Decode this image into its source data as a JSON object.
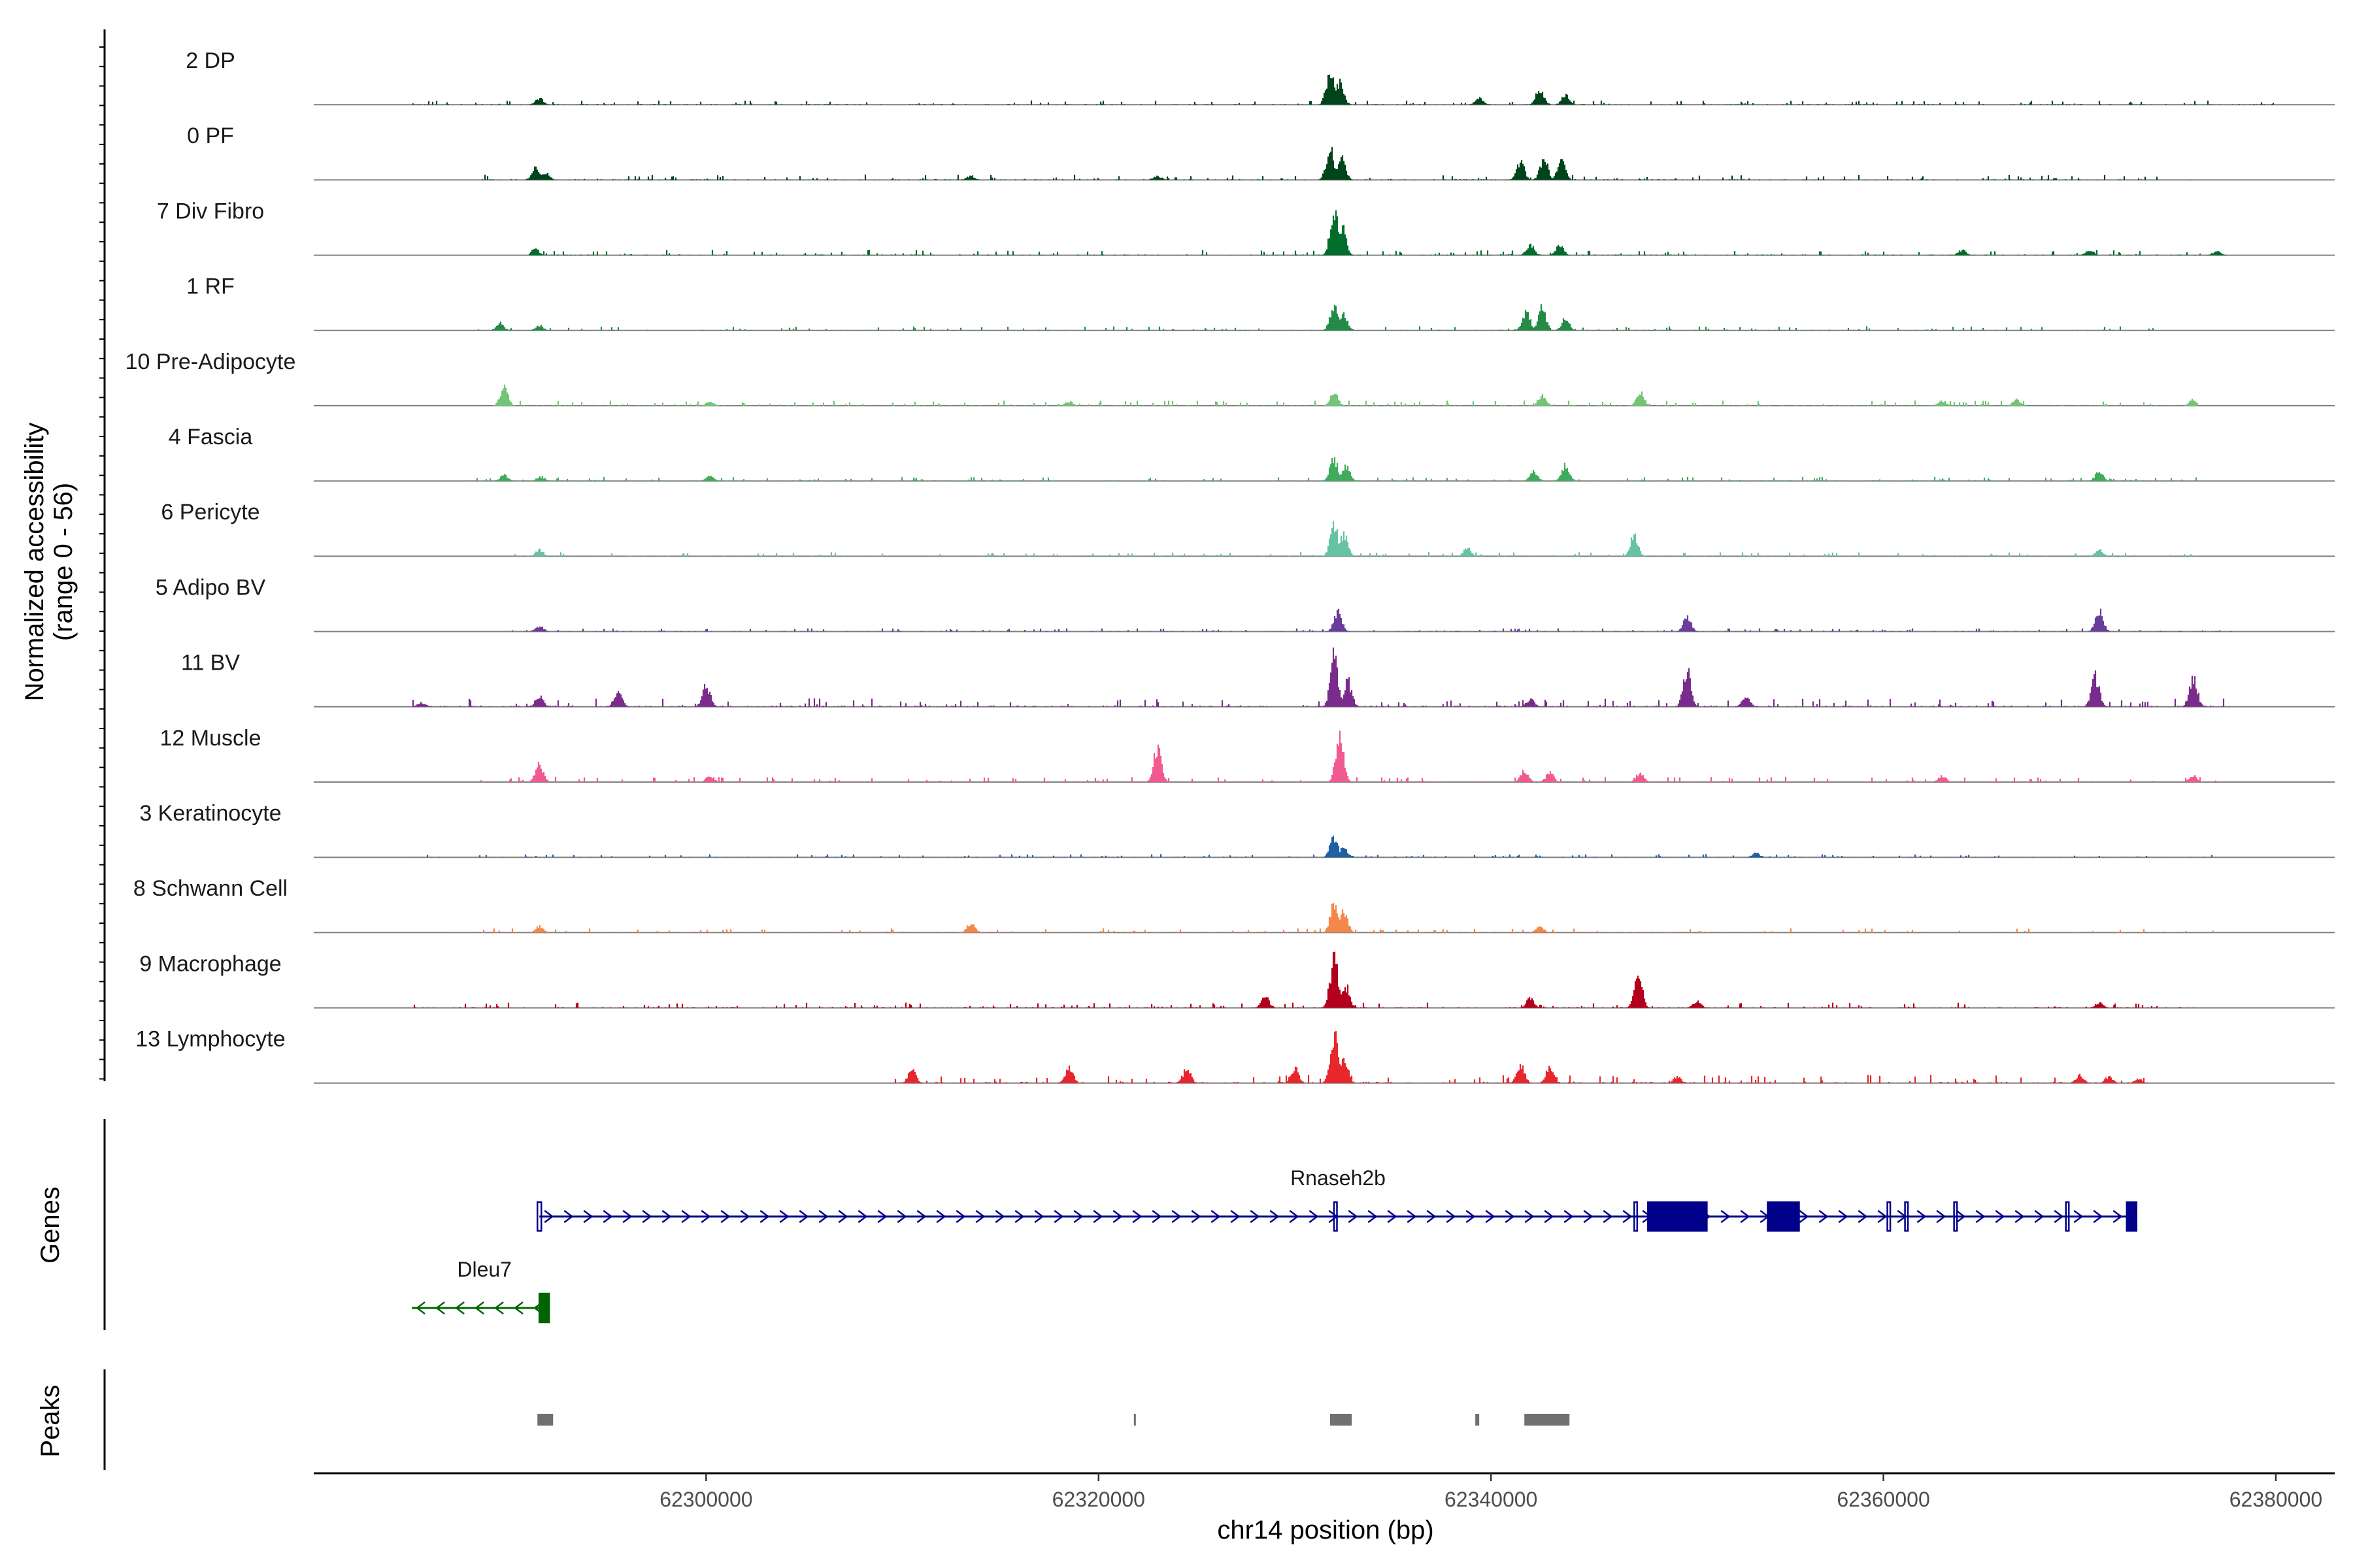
{
  "chart_data": {
    "type": "area",
    "title": "",
    "chromosome": "chr14",
    "xlabel": "chr14 position (bp)",
    "ylabel": "Normalized accessibility",
    "ylabel_range": "(range 0 - 56)",
    "yrange": [
      0,
      56
    ],
    "xlim": [
      62280000,
      62383000
    ],
    "xticks": [
      {
        "value": 62300000,
        "label": "62300000"
      },
      {
        "value": 62320000,
        "label": "62320000"
      },
      {
        "value": 62340000,
        "label": "62340000"
      },
      {
        "value": 62360000,
        "label": "62360000"
      },
      {
        "value": 62380000,
        "label": "62380000"
      }
    ],
    "panel_labels": {
      "genes": "Genes",
      "peaks": "Peaks"
    },
    "tracks": [
      {
        "name": "2 DP",
        "color": "#00441b",
        "peaks": [
          [
            62291500,
            0.12
          ],
          [
            62331800,
            0.62
          ],
          [
            62332300,
            0.42
          ],
          [
            62339400,
            0.12
          ],
          [
            62342500,
            0.32
          ],
          [
            62343800,
            0.18
          ]
        ],
        "noise": 0.04,
        "span": [
          62285000,
          62380000
        ]
      },
      {
        "name": "0 PF",
        "color": "#00441b",
        "peaks": [
          [
            62291300,
            0.22
          ],
          [
            62291800,
            0.15
          ],
          [
            62313500,
            0.08
          ],
          [
            62323000,
            0.08
          ],
          [
            62331800,
            0.58
          ],
          [
            62332400,
            0.42
          ],
          [
            62341500,
            0.35
          ],
          [
            62342700,
            0.42
          ],
          [
            62343600,
            0.38
          ]
        ],
        "noise": 0.05,
        "span": [
          62288000,
          62376000
        ]
      },
      {
        "name": "7 Div Fibro",
        "color": "#006d2c",
        "peaks": [
          [
            62291300,
            0.12
          ],
          [
            62332000,
            0.92
          ],
          [
            62332400,
            0.55
          ],
          [
            62342000,
            0.2
          ],
          [
            62343500,
            0.18
          ],
          [
            62364000,
            0.1
          ],
          [
            62370500,
            0.1
          ],
          [
            62377000,
            0.08
          ]
        ],
        "noise": 0.05,
        "span": [
          62291000,
          62377500
        ]
      },
      {
        "name": "1 RF",
        "color": "#238b45",
        "peaks": [
          [
            62289500,
            0.14
          ],
          [
            62291500,
            0.1
          ],
          [
            62332000,
            0.45
          ],
          [
            62332500,
            0.32
          ],
          [
            62341800,
            0.35
          ],
          [
            62342600,
            0.42
          ],
          [
            62343800,
            0.22
          ]
        ],
        "noise": 0.04,
        "span": [
          62288000,
          62376000
        ]
      },
      {
        "name": "10 Pre-Adipocyte",
        "color": "#74c476",
        "peaks": [
          [
            62289700,
            0.35
          ],
          [
            62300200,
            0.08
          ],
          [
            62318500,
            0.08
          ],
          [
            62332000,
            0.28
          ],
          [
            62342600,
            0.2
          ],
          [
            62347600,
            0.25
          ],
          [
            62363000,
            0.1
          ],
          [
            62366800,
            0.12
          ],
          [
            62375800,
            0.12
          ]
        ],
        "noise": 0.05,
        "span": [
          62289000,
          62376000
        ]
      },
      {
        "name": "4 Fascia",
        "color": "#41ab5d",
        "peaks": [
          [
            62289700,
            0.12
          ],
          [
            62291600,
            0.08
          ],
          [
            62300200,
            0.1
          ],
          [
            62332000,
            0.42
          ],
          [
            62332600,
            0.28
          ],
          [
            62342200,
            0.18
          ],
          [
            62343800,
            0.3
          ],
          [
            62371000,
            0.18
          ]
        ],
        "noise": 0.04,
        "span": [
          62288000,
          62376000
        ]
      },
      {
        "name": "6 Pericyte",
        "color": "#66c2a4",
        "peaks": [
          [
            62291500,
            0.12
          ],
          [
            62332000,
            0.62
          ],
          [
            62332500,
            0.42
          ],
          [
            62338800,
            0.15
          ],
          [
            62347300,
            0.38
          ],
          [
            62371000,
            0.12
          ]
        ],
        "noise": 0.04,
        "span": [
          62290000,
          62376000
        ]
      },
      {
        "name": "5 Adipo BV",
        "color": "#6a3d9a",
        "peaks": [
          [
            62291500,
            0.1
          ],
          [
            62332200,
            0.4
          ],
          [
            62350000,
            0.28
          ],
          [
            62371000,
            0.4
          ]
        ],
        "noise": 0.03,
        "span": [
          62290000,
          62378000
        ]
      },
      {
        "name": "11 BV",
        "color": "#7a2c8c",
        "peaks": [
          [
            62285500,
            0.08
          ],
          [
            62291500,
            0.2
          ],
          [
            62295500,
            0.3
          ],
          [
            62300000,
            0.42
          ],
          [
            62332000,
            0.92
          ],
          [
            62332700,
            0.5
          ],
          [
            62342000,
            0.15
          ],
          [
            62350000,
            0.68
          ],
          [
            62353000,
            0.2
          ],
          [
            62370800,
            0.58
          ],
          [
            62375800,
            0.6
          ]
        ],
        "noise": 0.08,
        "span": [
          62285000,
          62377500
        ]
      },
      {
        "name": "12 Muscle",
        "color": "#f05a90",
        "peaks": [
          [
            62291500,
            0.35
          ],
          [
            62300200,
            0.12
          ],
          [
            62323000,
            0.65
          ],
          [
            62332300,
            0.98
          ],
          [
            62341700,
            0.22
          ],
          [
            62343000,
            0.18
          ],
          [
            62347600,
            0.18
          ],
          [
            62363000,
            0.12
          ],
          [
            62375800,
            0.12
          ]
        ],
        "noise": 0.05,
        "span": [
          62288000,
          62377000
        ]
      },
      {
        "name": "3 Keratinocyte",
        "color": "#1f5fa6",
        "peaks": [
          [
            62332000,
            0.38
          ],
          [
            62332500,
            0.18
          ],
          [
            62353500,
            0.08
          ]
        ],
        "noise": 0.03,
        "span": [
          62285000,
          62377000
        ]
      },
      {
        "name": "8 Schwann Cell",
        "color": "#f4874b",
        "peaks": [
          [
            62291500,
            0.12
          ],
          [
            62313500,
            0.18
          ],
          [
            62332000,
            0.52
          ],
          [
            62332500,
            0.38
          ],
          [
            62342500,
            0.12
          ]
        ],
        "noise": 0.04,
        "span": [
          62287000,
          62377000
        ]
      },
      {
        "name": "9 Macrophage",
        "color": "#b2001d",
        "peaks": [
          [
            62328500,
            0.22
          ],
          [
            62332000,
            0.96
          ],
          [
            62332600,
            0.42
          ],
          [
            62342000,
            0.18
          ],
          [
            62347500,
            0.7
          ],
          [
            62350500,
            0.12
          ],
          [
            62371000,
            0.1
          ]
        ],
        "noise": 0.05,
        "span": [
          62285000,
          62377000
        ]
      },
      {
        "name": "13 Lymphocyte",
        "color": "#e8262c",
        "peaks": [
          [
            62310500,
            0.25
          ],
          [
            62318500,
            0.3
          ],
          [
            62324500,
            0.28
          ],
          [
            62330000,
            0.3
          ],
          [
            62332000,
            0.98
          ],
          [
            62332500,
            0.55
          ],
          [
            62341500,
            0.35
          ],
          [
            62343000,
            0.3
          ],
          [
            62349500,
            0.12
          ],
          [
            62370000,
            0.15
          ],
          [
            62371500,
            0.12
          ],
          [
            62373000,
            0.08
          ]
        ],
        "noise": 0.08,
        "span": [
          62309500,
          62373500
        ]
      }
    ],
    "genes": [
      {
        "name": "Rnaseh2b",
        "strand": "+",
        "color": "#00008b",
        "start": 62291500,
        "end": 62372800,
        "label_pos": 62332200,
        "exons": [
          [
            62291400,
            62291600
          ],
          [
            62332000,
            62332150
          ],
          [
            62347300,
            62347450
          ],
          [
            62348000,
            62351000
          ],
          [
            62354100,
            62355700
          ],
          [
            62360200,
            62360350
          ],
          [
            62361100,
            62361250
          ],
          [
            62363600,
            62363750
          ],
          [
            62369300,
            62369450
          ],
          [
            62372400,
            62372900
          ]
        ],
        "thick": [
          [
            62348000,
            62351000
          ],
          [
            62354100,
            62355700
          ],
          [
            62372400,
            62372900
          ]
        ]
      },
      {
        "name": "Dleu7",
        "strand": "-",
        "color": "#006400",
        "start": 62285000,
        "end": 62292000,
        "label_pos": 62288700,
        "exons": [
          [
            62291500,
            62292000
          ]
        ],
        "thick": [
          [
            62291500,
            62292000
          ]
        ]
      }
    ],
    "peak_regions": [
      [
        62291400,
        62292200
      ],
      [
        62321800,
        62321900
      ],
      [
        62331800,
        62332900
      ],
      [
        62339200,
        62339400
      ],
      [
        62341700,
        62344000
      ]
    ]
  }
}
